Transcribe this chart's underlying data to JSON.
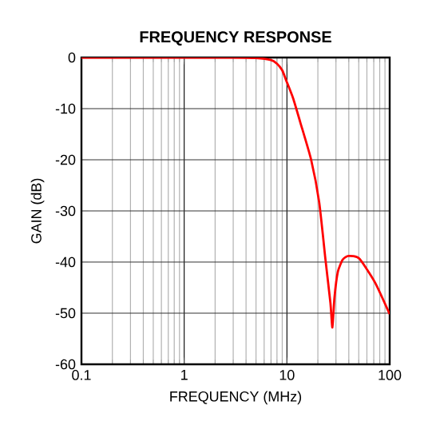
{
  "chart_data": {
    "type": "line",
    "title": "FREQUENCY RESPONSE",
    "xlabel": "FREQUENCY (MHz)",
    "ylabel": "GAIN (dB)",
    "log": "x",
    "grid": true,
    "xlim": [
      0.1,
      100
    ],
    "ylim": [
      -60,
      0
    ],
    "xticks": [
      0.1,
      1,
      10,
      100
    ],
    "yticks": [
      -60,
      -50,
      -40,
      -30,
      -20,
      -10,
      0
    ],
    "x": [
      0.1,
      1,
      3,
      5,
      7,
      8,
      9,
      9.8,
      11.5,
      13.5,
      17.2,
      20.6,
      23.8,
      26.5,
      27.7,
      29,
      31.3,
      35,
      39.8,
      50.5,
      72,
      100
    ],
    "series": [
      {
        "color": "#ff0000",
        "values": [
          0,
          0,
          0,
          -0.1,
          -0.5,
          -1.2,
          -2.5,
          -4.4,
          -8,
          -12.7,
          -20,
          -28.3,
          -39.8,
          -48,
          -52.8,
          -47,
          -41.9,
          -39.5,
          -38.8,
          -39.3,
          -44,
          -50.2
        ]
      }
    ]
  }
}
